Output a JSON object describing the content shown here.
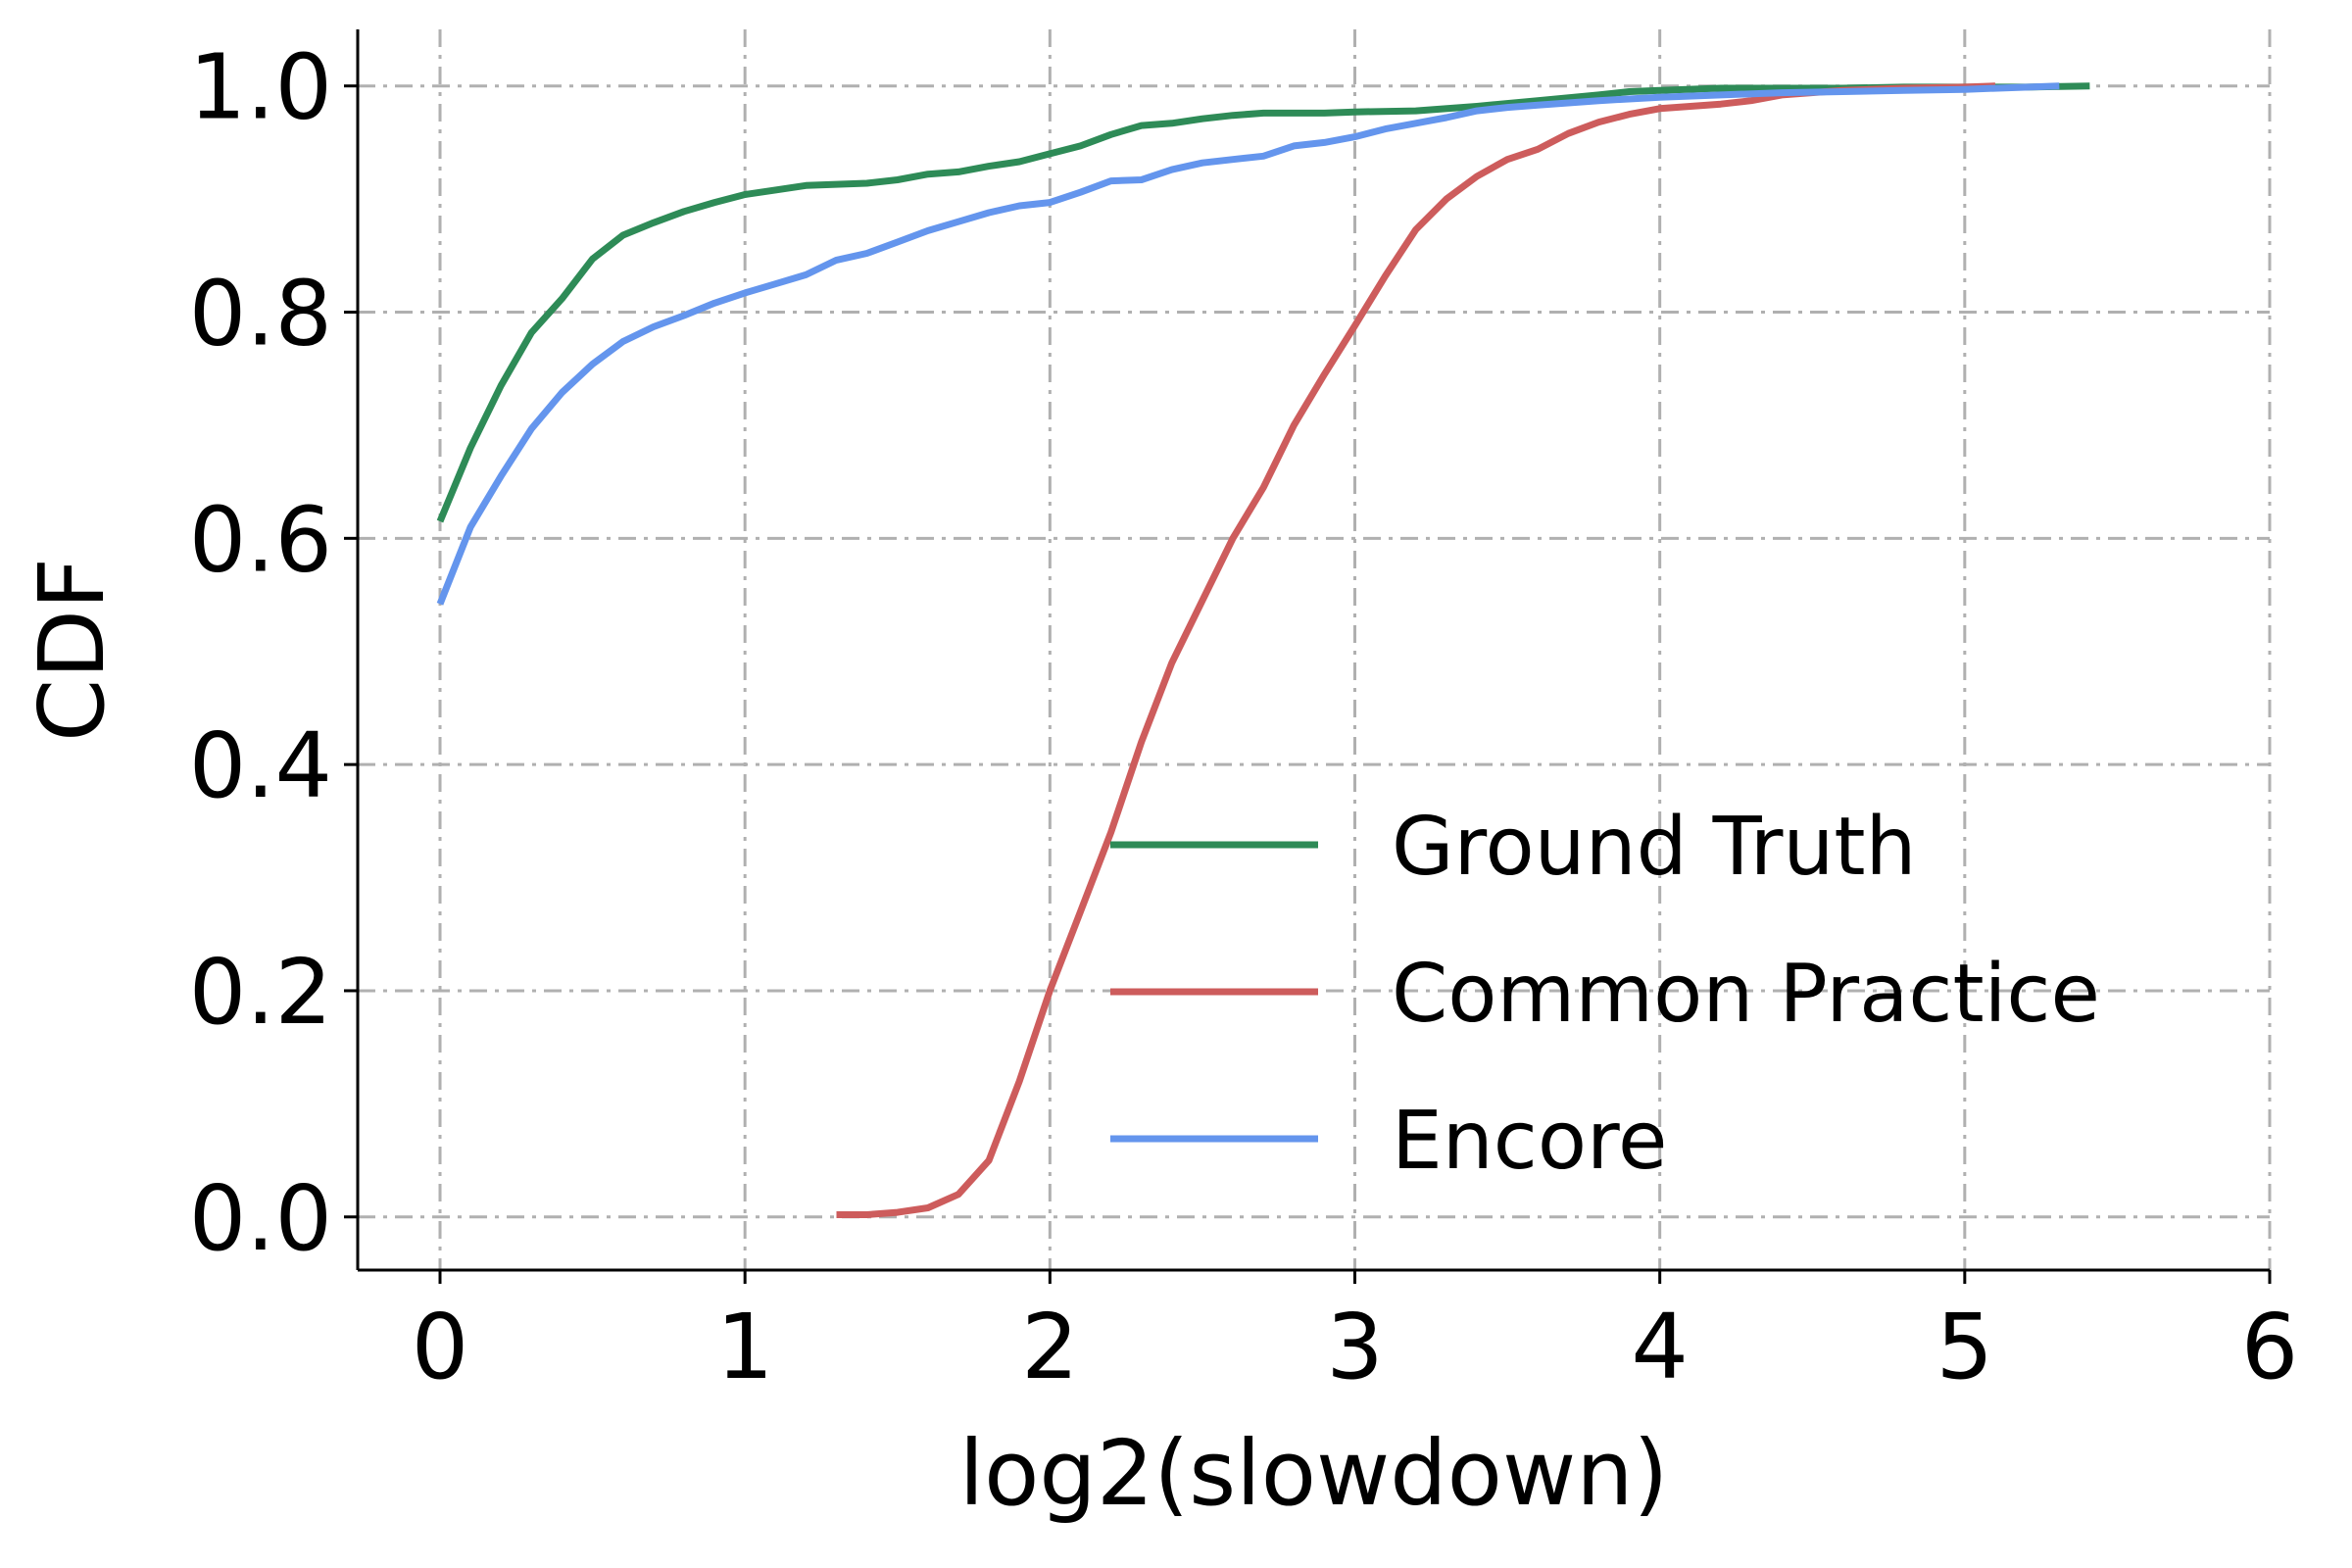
{
  "chart_data": {
    "type": "line",
    "xlabel": "log2(slowdown)",
    "ylabel": "CDF",
    "xlim": [
      -0.27,
      6.0
    ],
    "ylim": [
      -0.047,
      1.05
    ],
    "x_ticks": [
      0,
      1,
      2,
      3,
      4,
      5,
      6
    ],
    "x_tick_labels": [
      "0",
      "1",
      "2",
      "3",
      "4",
      "5",
      "6"
    ],
    "y_ticks": [
      0.0,
      0.2,
      0.4,
      0.6,
      0.8,
      1.0
    ],
    "y_tick_labels": [
      "0.0",
      "0.2",
      "0.4",
      "0.6",
      "0.8",
      "1.0"
    ],
    "grid": true,
    "legend_position": "lower-right",
    "series": [
      {
        "name": "Ground Truth",
        "color": "#2e8b57",
        "points": [
          [
            0.0,
            0.615
          ],
          [
            0.1,
            0.68
          ],
          [
            0.2,
            0.735
          ],
          [
            0.3,
            0.782
          ],
          [
            0.4,
            0.812
          ],
          [
            0.5,
            0.847
          ],
          [
            0.6,
            0.868
          ],
          [
            0.7,
            0.879
          ],
          [
            0.8,
            0.889
          ],
          [
            0.9,
            0.897
          ],
          [
            1.0,
            0.904
          ],
          [
            1.1,
            0.908
          ],
          [
            1.2,
            0.912
          ],
          [
            1.4,
            0.914
          ],
          [
            1.5,
            0.917
          ],
          [
            1.6,
            0.922
          ],
          [
            1.7,
            0.924
          ],
          [
            1.8,
            0.929
          ],
          [
            1.9,
            0.933
          ],
          [
            2.0,
            0.94
          ],
          [
            2.1,
            0.947
          ],
          [
            2.2,
            0.957
          ],
          [
            2.3,
            0.965
          ],
          [
            2.4,
            0.967
          ],
          [
            2.5,
            0.971
          ],
          [
            2.6,
            0.974
          ],
          [
            2.7,
            0.976
          ],
          [
            2.8,
            0.976
          ],
          [
            2.9,
            0.976
          ],
          [
            3.0,
            0.977
          ],
          [
            3.2,
            0.978
          ],
          [
            3.4,
            0.982
          ],
          [
            3.6,
            0.987
          ],
          [
            3.8,
            0.992
          ],
          [
            3.9,
            0.995
          ],
          [
            4.0,
            0.996
          ],
          [
            4.2,
            0.998
          ],
          [
            4.4,
            0.998
          ],
          [
            4.6,
            0.998
          ],
          [
            4.8,
            0.999
          ],
          [
            5.0,
            0.999
          ],
          [
            5.2,
            0.999
          ],
          [
            5.41,
            1.0
          ]
        ]
      },
      {
        "name": "Common Practice",
        "color": "#cd5c5c",
        "points": [
          [
            1.3,
            0.002
          ],
          [
            1.4,
            0.002
          ],
          [
            1.5,
            0.004
          ],
          [
            1.6,
            0.008
          ],
          [
            1.7,
            0.02
          ],
          [
            1.8,
            0.05
          ],
          [
            1.9,
            0.12
          ],
          [
            2.0,
            0.2
          ],
          [
            2.1,
            0.27
          ],
          [
            2.2,
            0.34
          ],
          [
            2.3,
            0.42
          ],
          [
            2.4,
            0.49
          ],
          [
            2.5,
            0.545
          ],
          [
            2.6,
            0.6
          ],
          [
            2.7,
            0.645
          ],
          [
            2.8,
            0.7
          ],
          [
            2.9,
            0.745
          ],
          [
            3.0,
            0.788
          ],
          [
            3.1,
            0.832
          ],
          [
            3.2,
            0.873
          ],
          [
            3.3,
            0.9
          ],
          [
            3.4,
            0.92
          ],
          [
            3.5,
            0.935
          ],
          [
            3.6,
            0.944
          ],
          [
            3.7,
            0.958
          ],
          [
            3.8,
            0.968
          ],
          [
            3.9,
            0.975
          ],
          [
            4.0,
            0.98
          ],
          [
            4.1,
            0.982
          ],
          [
            4.2,
            0.984
          ],
          [
            4.3,
            0.987
          ],
          [
            4.4,
            0.992
          ],
          [
            4.6,
            0.996
          ],
          [
            4.8,
            0.998
          ],
          [
            5.0,
            0.999
          ],
          [
            5.1,
            1.0
          ]
        ]
      },
      {
        "name": "Encore",
        "color": "#6495ed",
        "points": [
          [
            0.0,
            0.542
          ],
          [
            0.1,
            0.61
          ],
          [
            0.2,
            0.655
          ],
          [
            0.3,
            0.697
          ],
          [
            0.4,
            0.729
          ],
          [
            0.5,
            0.754
          ],
          [
            0.6,
            0.774
          ],
          [
            0.7,
            0.787
          ],
          [
            0.8,
            0.797
          ],
          [
            0.9,
            0.808
          ],
          [
            1.0,
            0.817
          ],
          [
            1.1,
            0.825
          ],
          [
            1.2,
            0.833
          ],
          [
            1.3,
            0.846
          ],
          [
            1.4,
            0.852
          ],
          [
            1.5,
            0.862
          ],
          [
            1.6,
            0.872
          ],
          [
            1.7,
            0.88
          ],
          [
            1.8,
            0.888
          ],
          [
            1.9,
            0.894
          ],
          [
            2.0,
            0.897
          ],
          [
            2.1,
            0.906
          ],
          [
            2.2,
            0.916
          ],
          [
            2.3,
            0.917
          ],
          [
            2.4,
            0.926
          ],
          [
            2.5,
            0.932
          ],
          [
            2.6,
            0.935
          ],
          [
            2.7,
            0.938
          ],
          [
            2.8,
            0.947
          ],
          [
            2.9,
            0.95
          ],
          [
            3.0,
            0.955
          ],
          [
            3.1,
            0.962
          ],
          [
            3.2,
            0.967
          ],
          [
            3.3,
            0.972
          ],
          [
            3.4,
            0.978
          ],
          [
            3.5,
            0.981
          ],
          [
            3.6,
            0.983
          ],
          [
            3.7,
            0.985
          ],
          [
            3.8,
            0.987
          ],
          [
            4.0,
            0.99
          ],
          [
            4.2,
            0.992
          ],
          [
            4.4,
            0.994
          ],
          [
            4.6,
            0.995
          ],
          [
            4.8,
            0.996
          ],
          [
            5.0,
            0.997
          ],
          [
            5.31,
            1.0
          ]
        ]
      }
    ]
  }
}
